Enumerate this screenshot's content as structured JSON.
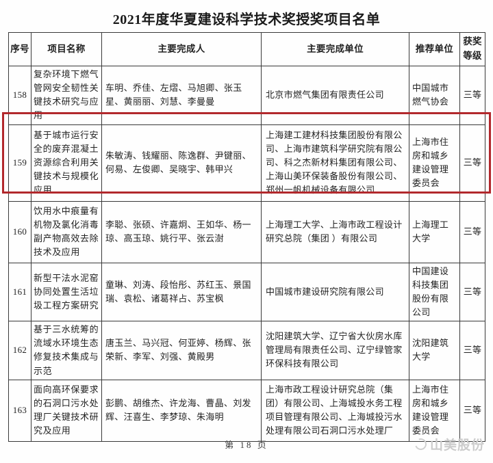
{
  "page": {
    "title": "2021年度华夏建设科学技术奖授奖项目名单",
    "footer_page": "第 18 页",
    "watermark": "山美股份"
  },
  "table": {
    "headers": [
      "序号",
      "项目名称",
      "主要完成人",
      "主要完成单位",
      "推荐单位",
      "获奖等级"
    ],
    "highlight_color": "#b2282c",
    "highlighted_row_no": "159",
    "rows": [
      {
        "no": "158",
        "project": "复杂环境下燃气管网安全韧性关键技术研究与应用",
        "people": "车明、乔佳、左熠、马旭卿、张玉星、黄丽丽、刘慧、李曼曼",
        "units": "北京市燃气集团有限责任公司",
        "recommender": "中国城市燃气协会",
        "grade": "三等"
      },
      {
        "no": "159",
        "project": "基于城市运行安全的废弃混凝土资源综合利用关键技术与规模化应用",
        "people": "朱敏涛、钱耀丽、陈逸群、尹键丽、何易、左俊卿、吴晓宇、韩甲兴",
        "units": "上海建工建材科技集团股份有限公司、上海市建筑科学研究院有限公司、科之杰新材料集团有限公司、上海山美环保装备股份有限公司、郑州一帆机械设备有限公司",
        "recommender": "上海市住房和城乡建设管理委员会",
        "grade": "三等"
      },
      {
        "no": "160",
        "project": "饮用水中痕量有机物及氯化消毒副产物高效去除技术及应用",
        "people": "李聪、张硕、许嘉炯、王如华、杨一琼、高玉琼、姚行平、张云澍",
        "units": "上海理工大学、上海市政工程设计研究总院（集团 ）有限公司",
        "recommender": "上海理工大学",
        "grade": "三等"
      },
      {
        "no": "161",
        "project": "新型干法水泥窑协同处置生活垃圾工程方案研究",
        "people": "童琳、刘涛、段怡彤、苏红玉、景国瑞、袁松、诸葛祥占、苏宝枫",
        "units": "中国城市建设研究院有限公司",
        "recommender": "中国建设科技集团股份有限公司",
        "grade": "三等"
      },
      {
        "no": "162",
        "project": "基于三水统筹的流域水环境生态修复技术集成与示范",
        "people": "唐玉兰、马兴冠、何亚婷、杨辉、张荣新、李军、刘强、黄殿男",
        "units": "沈阳建筑大学、辽宁省大伙房水库管理局有限责任公司、辽宁绿管家环保科技有限公司",
        "recommender": "沈阳建筑大学",
        "grade": "三等"
      },
      {
        "no": "163",
        "project": "面向高环保要求的石洞口污水处理厂关键技术研究及应用",
        "people": "彭鹏、胡维杰、许龙海、曹晶、刘发辉、汪喜生、李梦琼、朱海明",
        "units": "上海市政工程设计研究总院（集团）有限公司、上海城投水务工程项目管理有限公司、上海城投污水处理有限公司石洞口污水处理厂",
        "recommender": "上海市住房和城乡建设管理委员会",
        "grade": "三等"
      }
    ]
  }
}
